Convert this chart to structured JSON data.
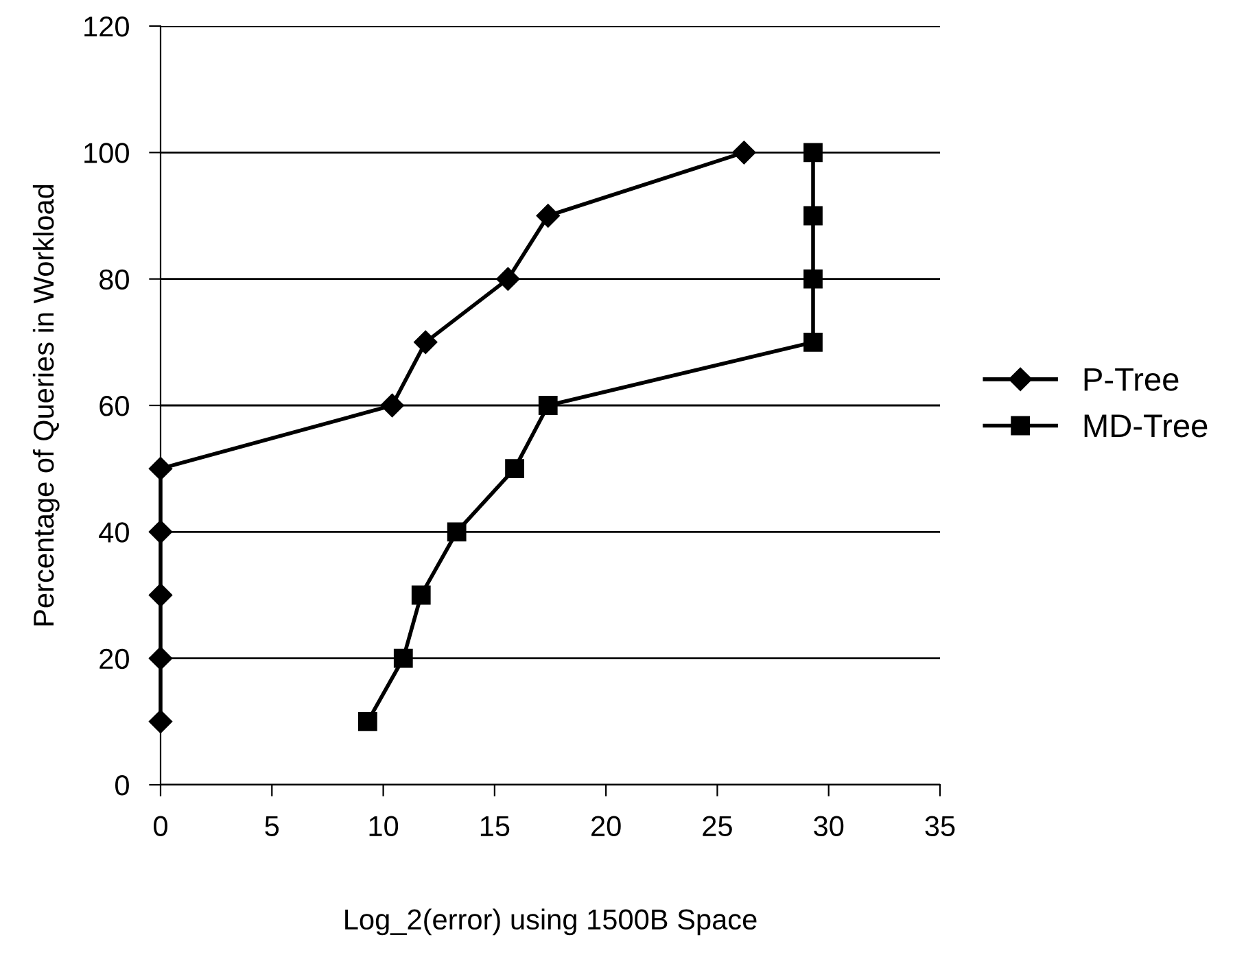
{
  "chart_data": {
    "type": "line",
    "xlabel": "Log_2(error) using 1500B Space",
    "ylabel": "Percentage of Queries in Workload",
    "xlim": [
      0,
      35
    ],
    "xticks": [
      0,
      5,
      10,
      15,
      20,
      25,
      30,
      35
    ],
    "ylim": [
      0,
      120
    ],
    "yticks": [
      0,
      20,
      40,
      60,
      80,
      100,
      120
    ],
    "grid": "y",
    "legend": "right",
    "line_style": "solid",
    "series": [
      {
        "name": "P-Tree",
        "color": "#000000",
        "marker": "diamond",
        "x": [
          0,
          0,
          0,
          0,
          0,
          10.4,
          11.9,
          15.6,
          17.4,
          26.2
        ],
        "values": [
          10,
          20,
          30,
          40,
          50,
          60,
          70,
          80,
          90,
          100
        ]
      },
      {
        "name": "MD-Tree",
        "color": "#000000",
        "marker": "square",
        "x": [
          9.3,
          10.9,
          11.7,
          13.3,
          15.9,
          17.4,
          29.3,
          29.3,
          29.3,
          29.3
        ],
        "values": [
          10,
          20,
          30,
          40,
          50,
          60,
          70,
          80,
          90,
          100
        ]
      }
    ]
  }
}
